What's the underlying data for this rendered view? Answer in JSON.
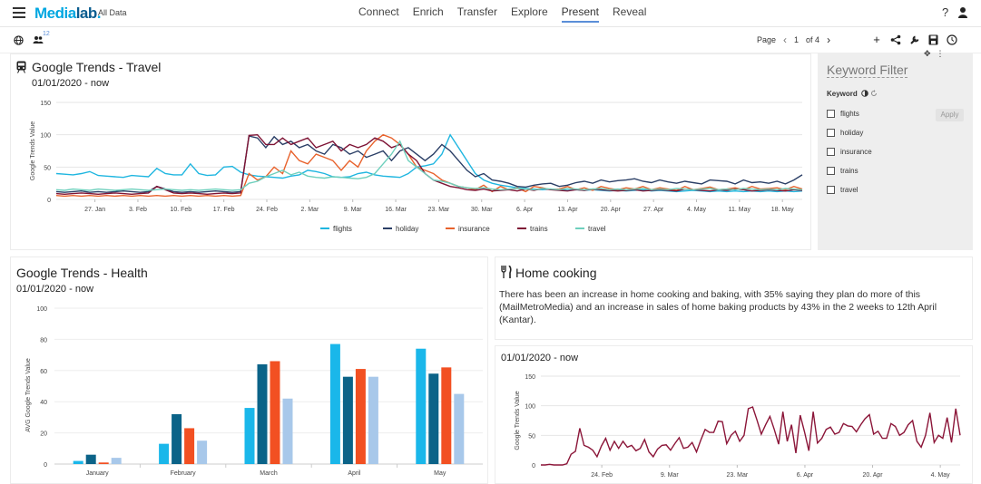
{
  "app": {
    "logo_main": "Media",
    "logo_accent": "lab",
    "logo_dot": ".",
    "subtitle": "All Data"
  },
  "nav": {
    "items": [
      "Connect",
      "Enrich",
      "Transfer",
      "Explore",
      "Present",
      "Reveal"
    ],
    "active": "Present"
  },
  "header": {
    "help": "?"
  },
  "toolbar": {
    "badge": "12",
    "page_label": "Page",
    "page_num": "1",
    "page_of": "of 4"
  },
  "colors": {
    "flights": "#1fb6e0",
    "holiday": "#2b3f66",
    "insurance": "#e8622c",
    "trains": "#7e1435",
    "travel": "#6ed0bd",
    "health1": "#1ab7ea",
    "health2": "#0b6388",
    "health3": "#f25022",
    "health4": "#a8c8ea",
    "cooking": "#8b1538"
  },
  "travel_panel": {
    "title": "Google Trends - Travel",
    "date": "01/01/2020 - now"
  },
  "health_panel": {
    "title": "Google Trends - Health",
    "date": "01/01/2020 - now"
  },
  "cooking_panel": {
    "title": "Home cooking",
    "text": "There has been an increase in home cooking and baking, with 35% saying they plan do more of this (MailMetroMedia) and an increase in sales of home baking products by 43% in the 2 weeks to 12th April (Kantar).",
    "date": "01/01/2020 - now"
  },
  "filter": {
    "title": "Keyword Filter",
    "label": "Keyword",
    "apply": "Apply",
    "keywords": [
      "flights",
      "holiday",
      "insurance",
      "trains",
      "travel"
    ]
  },
  "chart_data": [
    {
      "type": "line",
      "ylabel": "Google Trends Value",
      "ylim": [
        0,
        150
      ],
      "yticks": [
        0,
        50,
        100,
        150
      ],
      "xtick_labels": [
        "27. Jan",
        "3. Feb",
        "10. Feb",
        "17. Feb",
        "24. Feb",
        "2. Mar",
        "9. Mar",
        "16. Mar",
        "23. Mar",
        "30. Mar",
        "6. Apr",
        "13. Apr",
        "20. Apr",
        "27. Apr",
        "4. May",
        "11. May",
        "18. May"
      ],
      "legend": "bottom",
      "series": [
        {
          "name": "flights",
          "values": [
            40,
            39,
            38,
            40,
            43,
            37,
            36,
            35,
            34,
            37,
            36,
            35,
            48,
            40,
            38,
            38,
            55,
            40,
            37,
            38,
            50,
            51,
            42,
            38,
            36,
            35,
            34,
            33,
            36,
            38,
            45,
            43,
            40,
            35,
            34,
            35,
            40,
            42,
            38,
            36,
            35,
            34,
            40,
            50,
            52,
            55,
            70,
            100,
            80,
            60,
            40,
            30,
            25,
            22,
            20,
            18,
            17,
            16,
            15,
            16,
            15,
            14,
            15,
            14,
            15,
            14,
            13,
            14,
            13,
            14,
            15,
            13,
            14,
            13,
            12,
            13,
            14,
            13,
            12,
            13,
            12,
            13,
            12,
            13,
            12,
            13,
            12,
            13,
            12,
            13
          ]
        },
        {
          "name": "holiday",
          "values": [
            12,
            11,
            12,
            13,
            11,
            12,
            11,
            12,
            13,
            12,
            11,
            12,
            20,
            16,
            12,
            11,
            12,
            11,
            12,
            13,
            12,
            11,
            12,
            98,
            95,
            80,
            97,
            85,
            90,
            80,
            85,
            75,
            70,
            85,
            80,
            70,
            75,
            65,
            70,
            75,
            60,
            75,
            80,
            70,
            60,
            70,
            85,
            75,
            60,
            45,
            35,
            40,
            30,
            28,
            25,
            20,
            19,
            22,
            24,
            25,
            20,
            22,
            26,
            28,
            25,
            30,
            27,
            29,
            30,
            32,
            28,
            26,
            30,
            27,
            25,
            28,
            26,
            24,
            30,
            29,
            28,
            24,
            30,
            26,
            27,
            25,
            28,
            24,
            30,
            38
          ]
        },
        {
          "name": "insurance",
          "values": [
            6,
            5,
            6,
            5,
            6,
            5,
            6,
            5,
            6,
            5,
            6,
            5,
            6,
            5,
            6,
            5,
            6,
            5,
            6,
            5,
            6,
            5,
            6,
            40,
            30,
            35,
            50,
            40,
            75,
            60,
            55,
            70,
            65,
            60,
            45,
            60,
            50,
            75,
            90,
            100,
            95,
            85,
            70,
            50,
            45,
            40,
            30,
            25,
            20,
            18,
            15,
            22,
            12,
            20,
            15,
            18,
            12,
            20,
            18,
            15,
            16,
            20,
            15,
            18,
            14,
            20,
            17,
            15,
            18,
            16,
            20,
            15,
            18,
            16,
            14,
            20,
            15,
            17,
            19,
            15,
            16,
            18,
            15,
            20,
            16,
            17,
            18,
            15,
            20,
            16
          ]
        },
        {
          "name": "trains",
          "values": [
            9,
            8,
            9,
            10,
            9,
            8,
            9,
            10,
            9,
            8,
            9,
            10,
            20,
            15,
            10,
            9,
            10,
            9,
            8,
            9,
            10,
            9,
            10,
            99,
            100,
            85,
            85,
            95,
            85,
            90,
            95,
            80,
            85,
            90,
            75,
            85,
            80,
            85,
            95,
            90,
            80,
            85,
            70,
            60,
            40,
            30,
            25,
            20,
            18,
            15,
            14,
            16,
            13,
            14,
            15,
            13,
            16,
            14,
            17,
            15,
            14,
            13,
            15,
            14,
            16,
            15,
            14,
            13,
            14,
            15,
            13,
            14,
            15,
            14,
            13,
            16,
            15,
            14,
            13,
            15,
            14,
            16,
            15,
            13,
            14,
            15,
            14,
            13,
            15,
            14
          ]
        },
        {
          "name": "travel",
          "values": [
            15,
            14,
            16,
            15,
            14,
            16,
            15,
            14,
            15,
            16,
            15,
            14,
            15,
            16,
            15,
            14,
            15,
            14,
            15,
            16,
            15,
            14,
            15,
            25,
            28,
            35,
            40,
            45,
            38,
            42,
            36,
            34,
            33,
            35,
            34,
            33,
            32,
            34,
            40,
            55,
            70,
            90,
            60,
            50,
            40,
            30,
            28,
            25,
            20,
            18,
            17,
            18,
            16,
            15,
            16,
            17,
            16,
            15,
            17,
            16,
            15,
            17,
            16,
            15,
            16,
            17,
            15,
            16,
            15,
            16,
            17,
            15,
            16,
            15,
            17,
            16,
            15,
            16,
            17,
            15,
            16,
            15,
            17,
            16,
            15,
            16,
            15,
            17,
            16,
            15
          ]
        }
      ]
    },
    {
      "type": "bar",
      "ylabel": "AVG Google Trends Value",
      "ylim": [
        0,
        100
      ],
      "yticks": [
        0,
        20,
        40,
        60,
        80,
        100
      ],
      "categories": [
        "January",
        "February",
        "March",
        "April",
        "May"
      ],
      "series": [
        {
          "values": [
            2,
            13,
            36,
            77,
            74
          ]
        },
        {
          "values": [
            6,
            32,
            64,
            56,
            58
          ]
        },
        {
          "values": [
            1,
            23,
            66,
            61,
            62
          ]
        },
        {
          "values": [
            4,
            15,
            42,
            56,
            45
          ]
        }
      ]
    },
    {
      "type": "line",
      "ylabel": "Google Trends Value",
      "ylim": [
        0,
        150
      ],
      "yticks": [
        0,
        50,
        100,
        150
      ],
      "xtick_labels": [
        "24. Feb",
        "9. Mar",
        "23. Mar",
        "6. Apr",
        "20. Apr",
        "4. May"
      ],
      "series": [
        {
          "values": [
            0,
            0,
            1,
            0,
            0,
            0,
            2,
            18,
            23,
            62,
            33,
            30,
            25,
            14,
            32,
            45,
            25,
            40,
            28,
            40,
            30,
            33,
            24,
            28,
            43,
            22,
            14,
            27,
            33,
            34,
            25,
            36,
            46,
            28,
            30,
            38,
            22,
            42,
            60,
            55,
            55,
            74,
            73,
            36,
            50,
            57,
            40,
            50,
            95,
            98,
            76,
            52,
            68,
            82,
            60,
            35,
            90,
            40,
            68,
            20,
            84,
            56,
            24,
            90,
            37,
            45,
            60,
            64,
            52,
            55,
            70,
            66,
            65,
            56,
            68,
            78,
            85,
            52,
            57,
            45,
            45,
            70,
            65,
            50,
            55,
            68,
            75,
            40,
            30,
            50,
            88,
            38,
            50,
            45,
            80,
            38,
            95,
            50
          ]
        }
      ]
    }
  ]
}
